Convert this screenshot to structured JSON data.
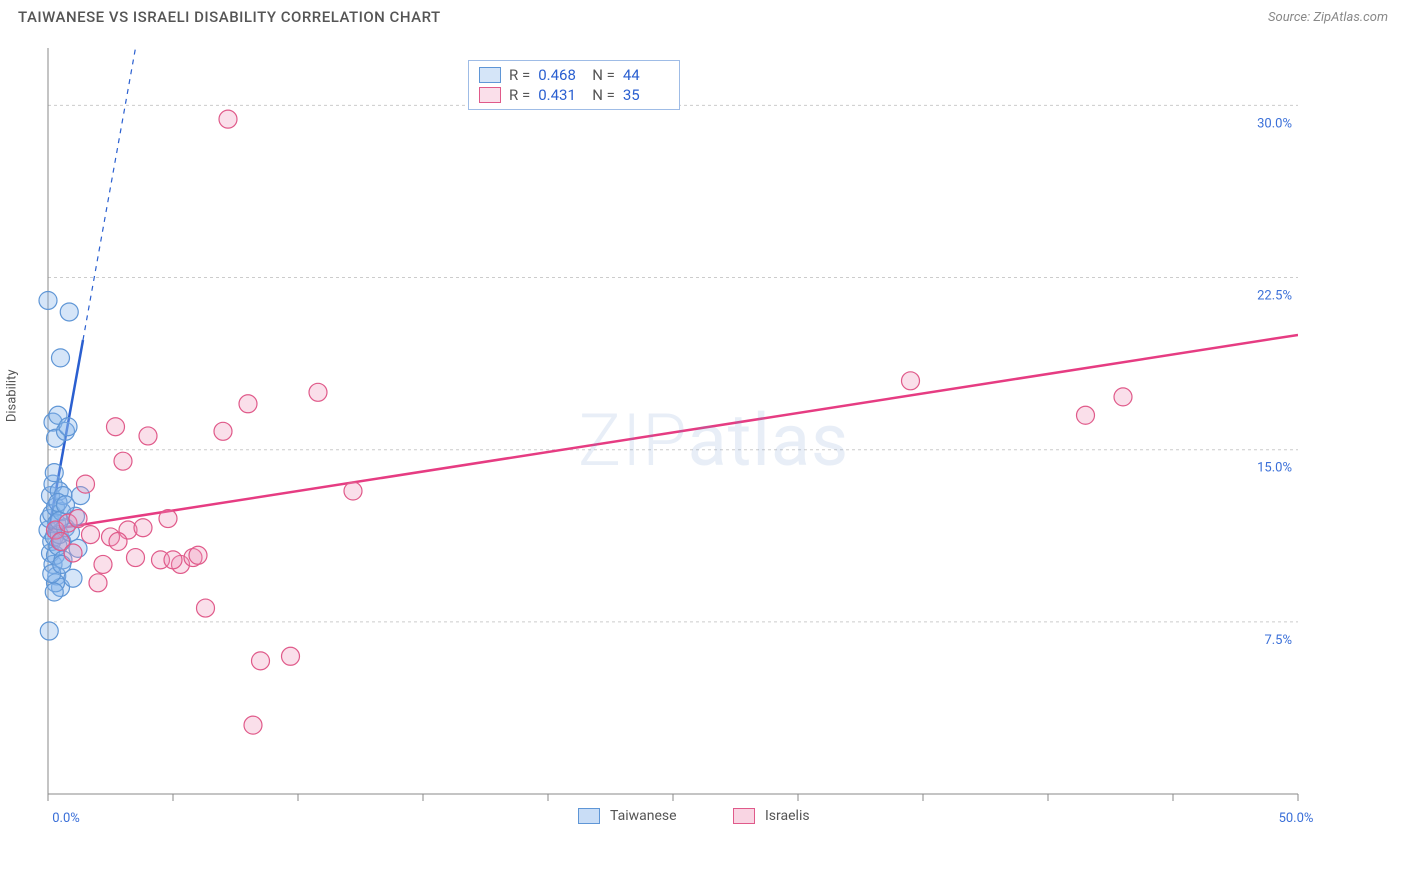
{
  "header": {
    "title": "TAIWANESE VS ISRAELI DISABILITY CORRELATION CHART",
    "source_prefix": "Source: ",
    "source_name": "ZipAtlas.com"
  },
  "watermark": {
    "zip": "ZIP",
    "atlas": "atlas"
  },
  "chart": {
    "type": "scatter",
    "ylabel": "Disability",
    "xlim": [
      0,
      50
    ],
    "ylim": [
      0,
      32.5
    ],
    "x_ticks_minor": [
      0,
      5,
      10,
      15,
      20,
      25,
      30,
      35,
      40,
      45,
      50
    ],
    "x_ticks_labeled": [
      0,
      50
    ],
    "y_ticks": [
      7.5,
      15.0,
      22.5,
      30.0
    ],
    "x_tick_format": "{v}.0%",
    "y_tick_format": "{v}%",
    "background_color": "#ffffff",
    "grid_color": "#cccccc",
    "axis_color": "#888888",
    "tick_label_color": "#3a6fd8",
    "marker_radius": 9,
    "marker_stroke_width": 1.2,
    "trend_line_width": 2.5,
    "trend_dash": "5,5",
    "series": [
      {
        "name": "Taiwanese",
        "fill": "rgba(135,180,235,0.35)",
        "stroke": "#5f96d6",
        "trend_color": "#2a5fd0",
        "R": 0.468,
        "N": 44,
        "trend": {
          "x0": 0,
          "y0": 11.3,
          "x1": 3.5,
          "y1": 32.5,
          "solid_until_x": 1.4
        },
        "points": [
          [
            0.0,
            11.5
          ],
          [
            0.05,
            12.0
          ],
          [
            0.1,
            10.5
          ],
          [
            0.1,
            13.0
          ],
          [
            0.15,
            11.0
          ],
          [
            0.15,
            12.2
          ],
          [
            0.2,
            10.0
          ],
          [
            0.2,
            13.5
          ],
          [
            0.2,
            16.2
          ],
          [
            0.25,
            11.2
          ],
          [
            0.25,
            14.0
          ],
          [
            0.3,
            10.4
          ],
          [
            0.3,
            12.5
          ],
          [
            0.3,
            15.5
          ],
          [
            0.35,
            9.5
          ],
          [
            0.35,
            11.8
          ],
          [
            0.4,
            10.8
          ],
          [
            0.4,
            16.5
          ],
          [
            0.45,
            11.3
          ],
          [
            0.45,
            13.2
          ],
          [
            0.5,
            9.0
          ],
          [
            0.5,
            19.0
          ],
          [
            0.55,
            11.0
          ],
          [
            0.55,
            12.3
          ],
          [
            0.6,
            10.2
          ],
          [
            0.6,
            13.0
          ],
          [
            0.7,
            11.6
          ],
          [
            0.7,
            15.8
          ],
          [
            0.8,
            16.0
          ],
          [
            0.85,
            21.0
          ],
          [
            0.0,
            21.5
          ],
          [
            0.9,
            11.4
          ],
          [
            1.0,
            9.4
          ],
          [
            1.1,
            12.1
          ],
          [
            1.2,
            10.7
          ],
          [
            1.3,
            13.0
          ],
          [
            0.3,
            9.2
          ],
          [
            0.25,
            8.8
          ],
          [
            0.15,
            9.6
          ],
          [
            0.05,
            7.1
          ],
          [
            0.4,
            12.7
          ],
          [
            0.55,
            10.0
          ],
          [
            0.7,
            12.6
          ],
          [
            0.45,
            11.9
          ]
        ]
      },
      {
        "name": "Israelis",
        "fill": "rgba(240,150,185,0.30)",
        "stroke": "#e05a8a",
        "trend_color": "#e63c82",
        "R": 0.431,
        "N": 35,
        "trend": {
          "x0": 0,
          "y0": 11.5,
          "x1": 50,
          "y1": 20.0,
          "solid_until_x": 50
        },
        "points": [
          [
            0.3,
            11.5
          ],
          [
            0.5,
            11.0
          ],
          [
            0.8,
            11.8
          ],
          [
            1.0,
            10.5
          ],
          [
            1.2,
            12.0
          ],
          [
            1.5,
            13.5
          ],
          [
            1.7,
            11.3
          ],
          [
            2.0,
            9.2
          ],
          [
            2.2,
            10.0
          ],
          [
            2.5,
            11.2
          ],
          [
            2.7,
            16.0
          ],
          [
            3.0,
            14.5
          ],
          [
            3.2,
            11.5
          ],
          [
            3.5,
            10.3
          ],
          [
            4.0,
            15.6
          ],
          [
            4.5,
            10.2
          ],
          [
            4.8,
            12.0
          ],
          [
            5.3,
            10.0
          ],
          [
            5.8,
            10.3
          ],
          [
            6.0,
            10.4
          ],
          [
            6.3,
            8.1
          ],
          [
            7.0,
            15.8
          ],
          [
            7.2,
            29.4
          ],
          [
            8.0,
            17.0
          ],
          [
            8.2,
            3.0
          ],
          [
            8.5,
            5.8
          ],
          [
            9.7,
            6.0
          ],
          [
            10.8,
            17.5
          ],
          [
            12.2,
            13.2
          ],
          [
            5.0,
            10.2
          ],
          [
            34.5,
            18.0
          ],
          [
            41.5,
            16.5
          ],
          [
            43.0,
            17.3
          ],
          [
            2.8,
            11.0
          ],
          [
            3.8,
            11.6
          ]
        ]
      }
    ]
  },
  "legend": {
    "bottom_items": [
      {
        "label": "Taiwanese",
        "fill": "rgba(135,180,235,0.45)",
        "stroke": "#5f96d6"
      },
      {
        "label": "Israelis",
        "fill": "rgba(240,150,185,0.40)",
        "stroke": "#e05a8a"
      }
    ]
  }
}
